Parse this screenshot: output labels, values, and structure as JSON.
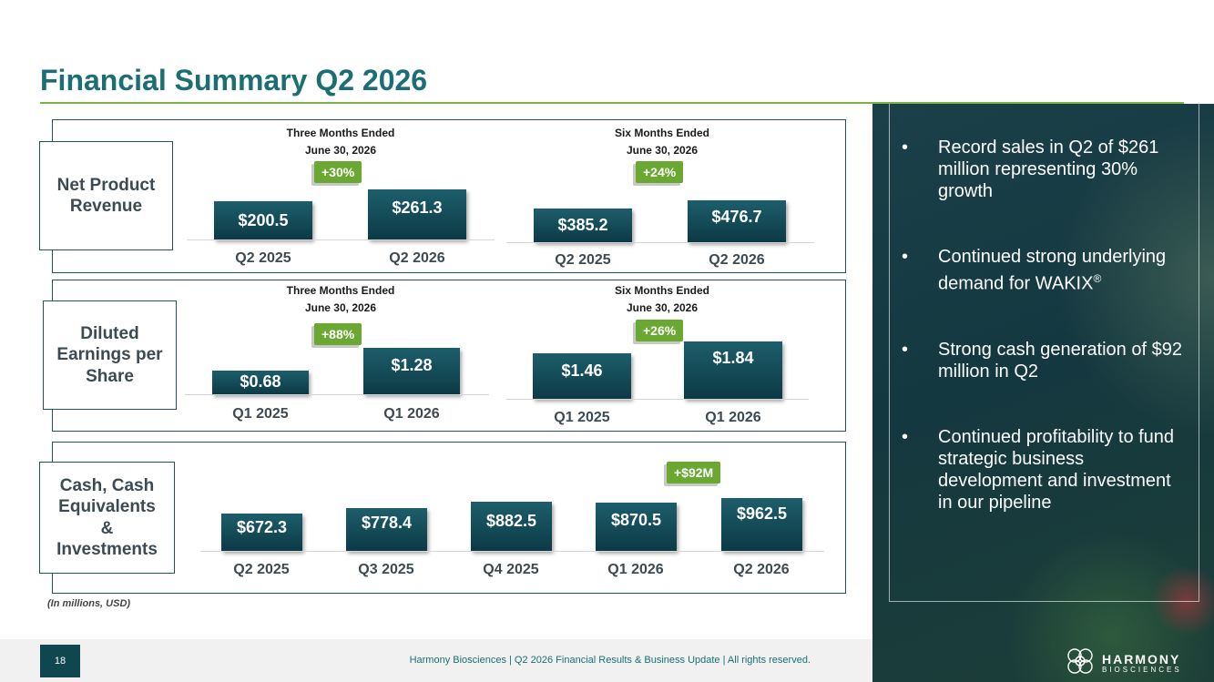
{
  "title": "Financial Summary Q2 2026",
  "units_note": "(In millions, USD)",
  "page_number": "18",
  "footer": "Harmony Biosciences | Q2 2026 Financial Results & Business Update | All rights reserved.",
  "logo": {
    "word": "HARMONY",
    "sub": "BIOSCIENCES"
  },
  "rows": {
    "revenue": {
      "label": "Net Product Revenue",
      "three": {
        "hdr1": "Three Months Ended",
        "hdr2": "June 30, 2026",
        "badge": "+30%",
        "bars": [
          {
            "value": "$200.5",
            "label": "Q2 2025"
          },
          {
            "value": "$261.3",
            "label": "Q2 2026"
          }
        ]
      },
      "six": {
        "hdr1": "Six Months Ended",
        "hdr2": "June 30, 2026",
        "badge": "+24%",
        "bars": [
          {
            "value": "$385.2",
            "label": "Q2 2025"
          },
          {
            "value": "$476.7",
            "label": "Q2 2026"
          }
        ]
      }
    },
    "eps": {
      "label": "Diluted Earnings per Share",
      "three": {
        "hdr1": "Three Months Ended",
        "hdr2": "June 30, 2026",
        "badge": "+88%",
        "bars": [
          {
            "value": "$0.68",
            "label": "Q1 2025"
          },
          {
            "value": "$1.28",
            "label": "Q1 2026"
          }
        ]
      },
      "six": {
        "hdr1": "Six Months Ended",
        "hdr2": "June 30, 2026",
        "badge": "+26%",
        "bars": [
          {
            "value": "$1.46",
            "label": "Q1 2025"
          },
          {
            "value": "$1.84",
            "label": "Q1 2026"
          }
        ]
      }
    },
    "cash": {
      "label_lines": [
        "Cash, Cash",
        "Equivalents",
        "&",
        "Investments"
      ],
      "badge": "+$92M",
      "bars": [
        {
          "value": "$672.3",
          "label": "Q2 2025"
        },
        {
          "value": "$778.4",
          "label": "Q3 2025"
        },
        {
          "value": "$882.5",
          "label": "Q4 2025"
        },
        {
          "value": "$870.5",
          "label": "Q1 2026"
        },
        {
          "value": "$962.5",
          "label": "Q2 2026"
        }
      ]
    }
  },
  "bullets": [
    "Record sales in Q2 of $261 million representing 30% growth",
    "Continued strong underlying demand for WAKIX",
    "Strong cash generation of $92 million in Q2",
    "Continued profitability to fund strategic business development and investment in our pipeline"
  ],
  "registered_mark": "®",
  "bullet_glyph": "•"
}
